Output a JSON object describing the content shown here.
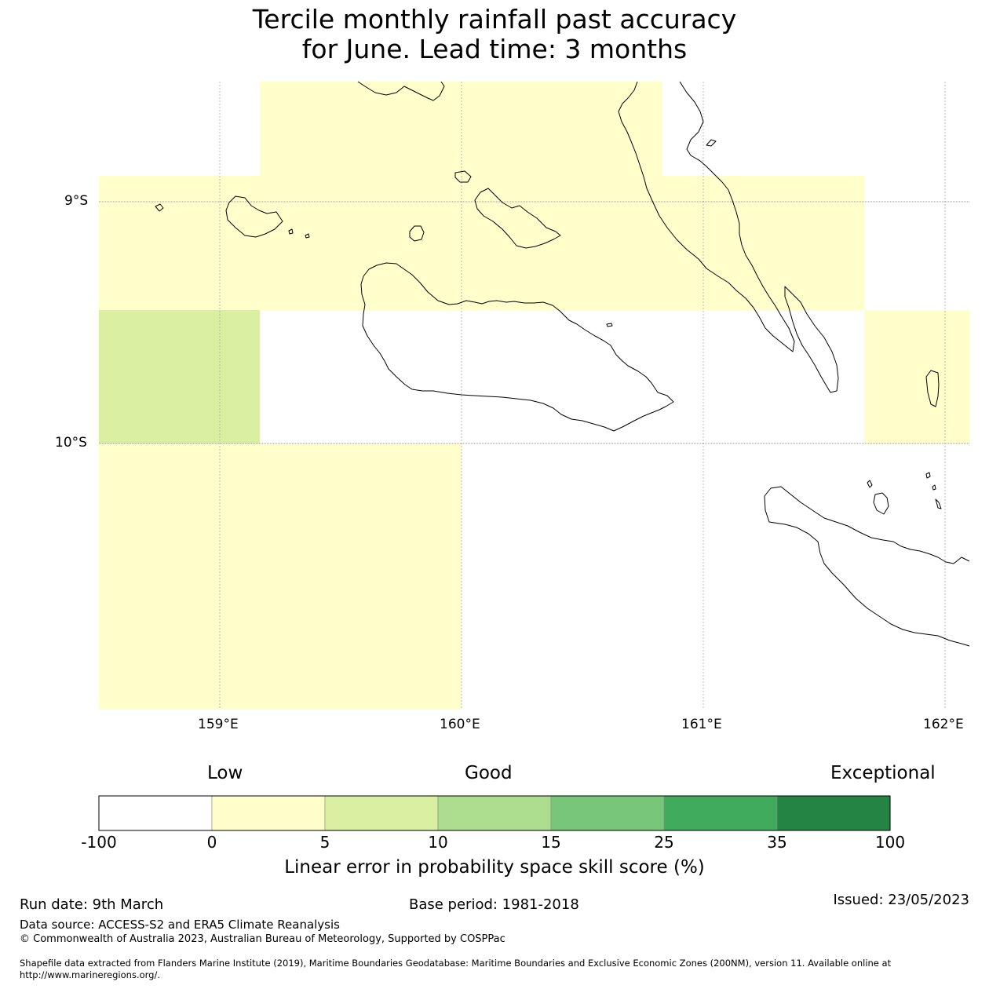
{
  "title": {
    "line1": "Tercile monthly rainfall past accuracy",
    "line2": "for June. Lead time: 3 months"
  },
  "map": {
    "lat_labels": [
      "9°S",
      "10°S"
    ],
    "lon_labels": [
      "159°E",
      "160°E",
      "161°E",
      "162°E"
    ]
  },
  "legend": {
    "categories": [
      "Low",
      "Good",
      "Exceptional"
    ],
    "ticks": [
      "-100",
      "0",
      "5",
      "10",
      "15",
      "25",
      "35",
      "100"
    ],
    "colors": [
      "#ffffff",
      "#ffffcc",
      "#d9f0a3",
      "#addd8e",
      "#78c679",
      "#41ab5d",
      "#238443"
    ],
    "title": "Linear error in probability space skill score (%)"
  },
  "footer": {
    "run_date": "Run date: 9th March",
    "base_period": "Base period: 1981-2018",
    "issued": "Issued: 23/05/2023",
    "data_source": "Data source: ACCESS-S2 and ERA5 Climate Reanalysis",
    "copyright": "© Commonwealth of Australia 2023, Australian Bureau of Meteorology, Supported by COSPPac",
    "shapefile_line1": "Shapefile data extracted from Flanders Marine Institute (2019), Maritime Boundaries Geodatabase: Maritime Boundaries and Exclusive Economic Zones (200NM), version 11. Available online at",
    "shapefile_line2": "http://www.marineregions.org/."
  }
}
